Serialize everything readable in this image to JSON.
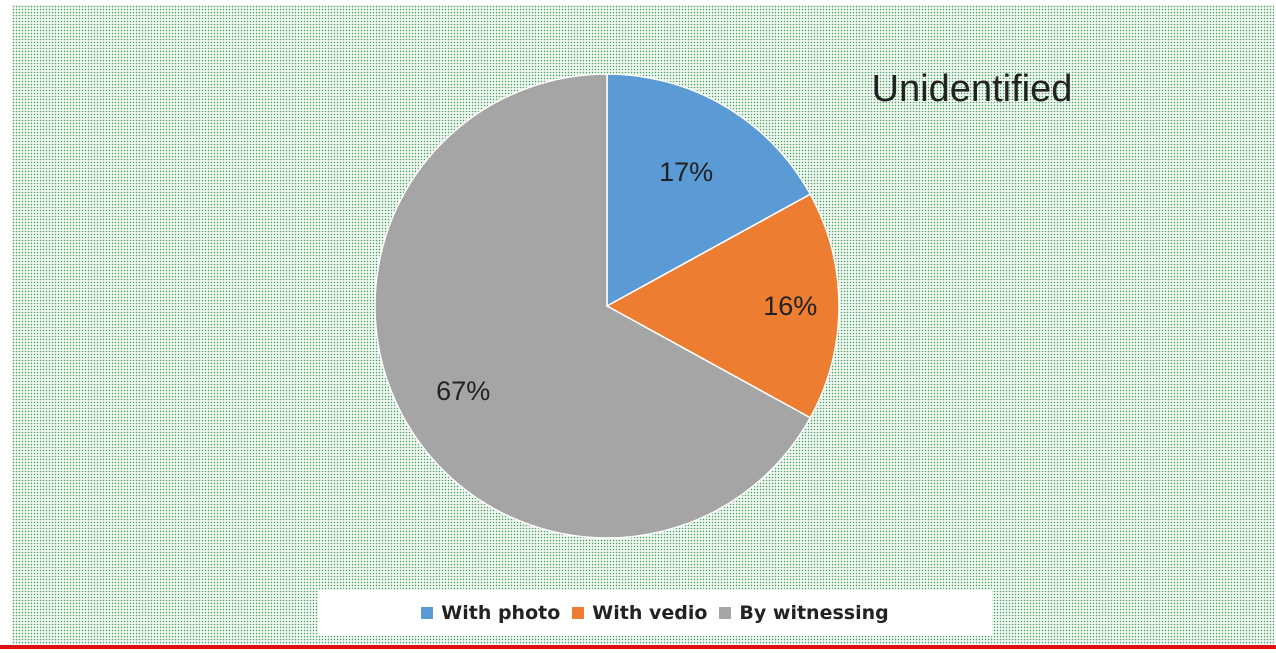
{
  "chart_data": {
    "type": "pie",
    "title": "Unidentified",
    "series": [
      {
        "name": "With photo",
        "value": 17,
        "label": "17%",
        "color": "#5b9bd5"
      },
      {
        "name": "With vedio",
        "value": 16,
        "label": "16%",
        "color": "#ed7d31"
      },
      {
        "name": "By witnessing",
        "value": 67,
        "label": "67%",
        "color": "#a5a5a5"
      }
    ],
    "legend_position": "bottom"
  }
}
